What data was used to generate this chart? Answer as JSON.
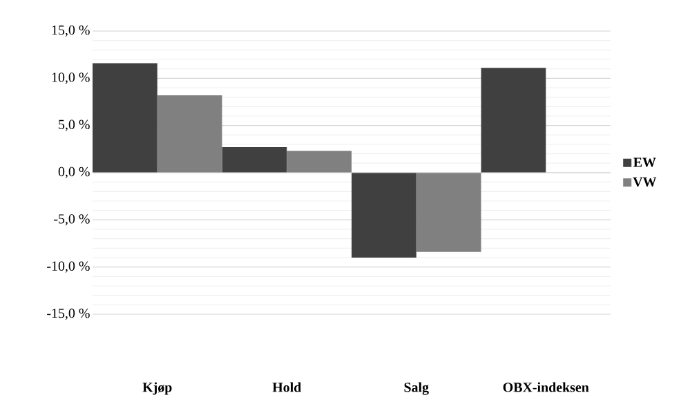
{
  "chart_data": {
    "type": "bar",
    "categories": [
      "Kjøp",
      "Hold",
      "Salg",
      "OBX-indeksen"
    ],
    "series": [
      {
        "name": "EW",
        "color": "#404040",
        "values": [
          11.6,
          2.7,
          -9.0,
          11.1
        ]
      },
      {
        "name": "VW",
        "color": "#808080",
        "values": [
          8.2,
          2.3,
          -8.4,
          null
        ]
      }
    ],
    "ylim": [
      -15,
      15
    ],
    "yticks": [
      {
        "value": -15,
        "label": "-15,0 %"
      },
      {
        "value": -10,
        "label": "-10,0 %"
      },
      {
        "value": -5,
        "label": "-5,0 %"
      },
      {
        "value": 0,
        "label": "0,0 %"
      },
      {
        "value": 5,
        "label": "5,0 %"
      },
      {
        "value": 10,
        "label": "10,0 %"
      },
      {
        "value": 15,
        "label": "15,0 %"
      }
    ],
    "grid": "y",
    "legend": "right"
  }
}
